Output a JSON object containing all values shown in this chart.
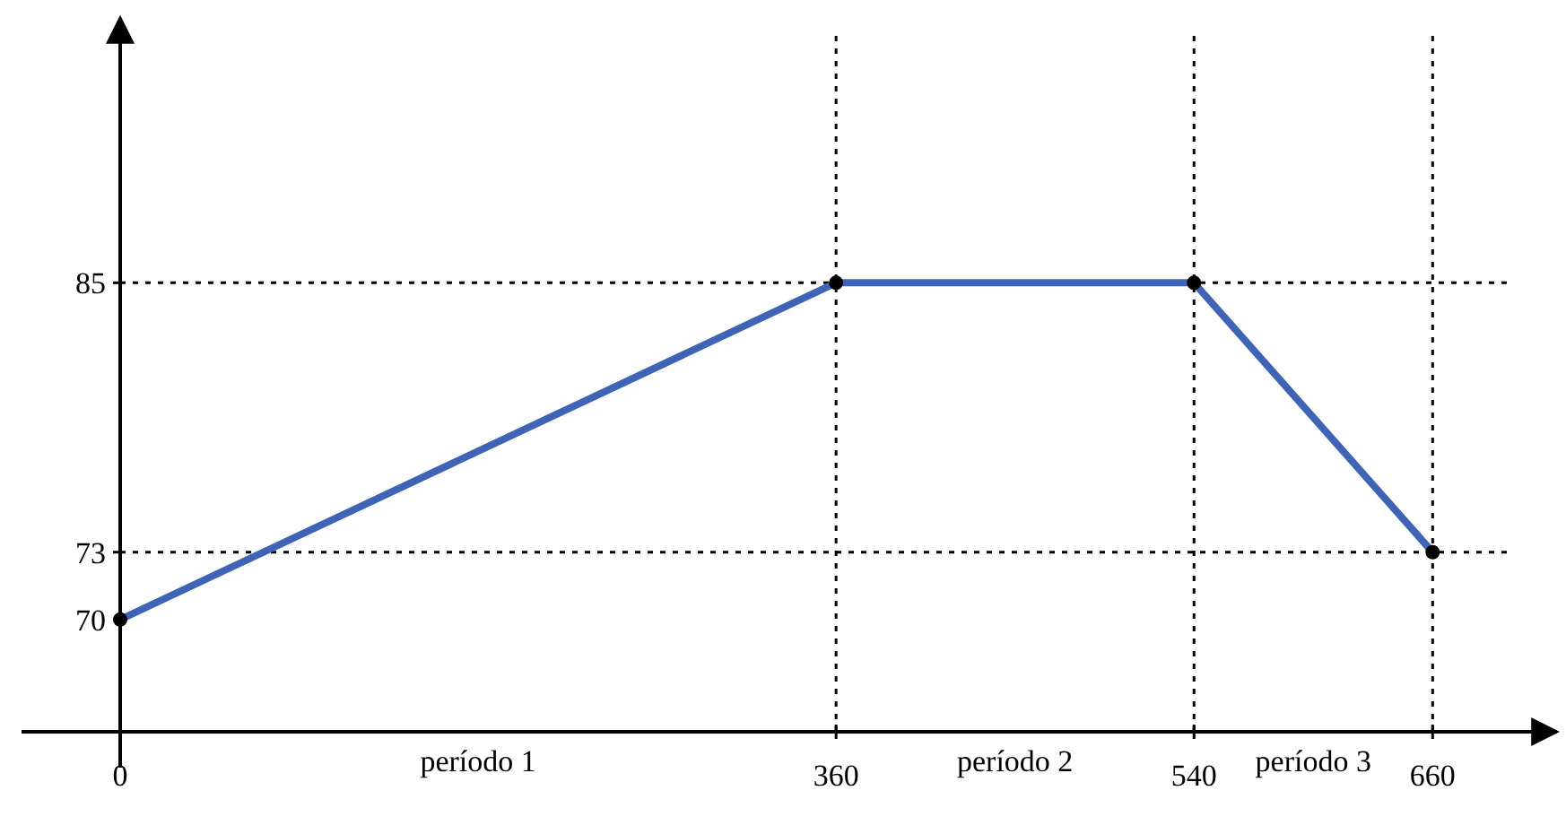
{
  "chart_data": {
    "type": "line",
    "x": [
      0,
      360,
      540,
      660
    ],
    "series": [
      {
        "color": "#3f63b5",
        "values": [
          70,
          85,
          85,
          73
        ]
      }
    ],
    "xlim": [
      0,
      700
    ],
    "xticks": [
      0,
      360,
      540,
      660
    ],
    "ylim": [
      65,
      96
    ],
    "yticks": [
      70,
      73,
      85
    ],
    "marker": "circle",
    "ref_lines": [
      {
        "axis": "y",
        "value": 85,
        "color": "#000000",
        "line_style": "dotted"
      },
      {
        "axis": "y",
        "value": 73,
        "color": "#000000",
        "line_style": "dotted"
      },
      {
        "axis": "x",
        "value": 360,
        "color": "#000000",
        "line_style": "dotted"
      },
      {
        "axis": "x",
        "value": 540,
        "color": "#000000",
        "line_style": "dotted"
      },
      {
        "axis": "x",
        "value": 660,
        "color": "#000000",
        "line_style": "dotted"
      }
    ],
    "annotations": [
      "período 1",
      "período 2",
      "período 3"
    ]
  }
}
